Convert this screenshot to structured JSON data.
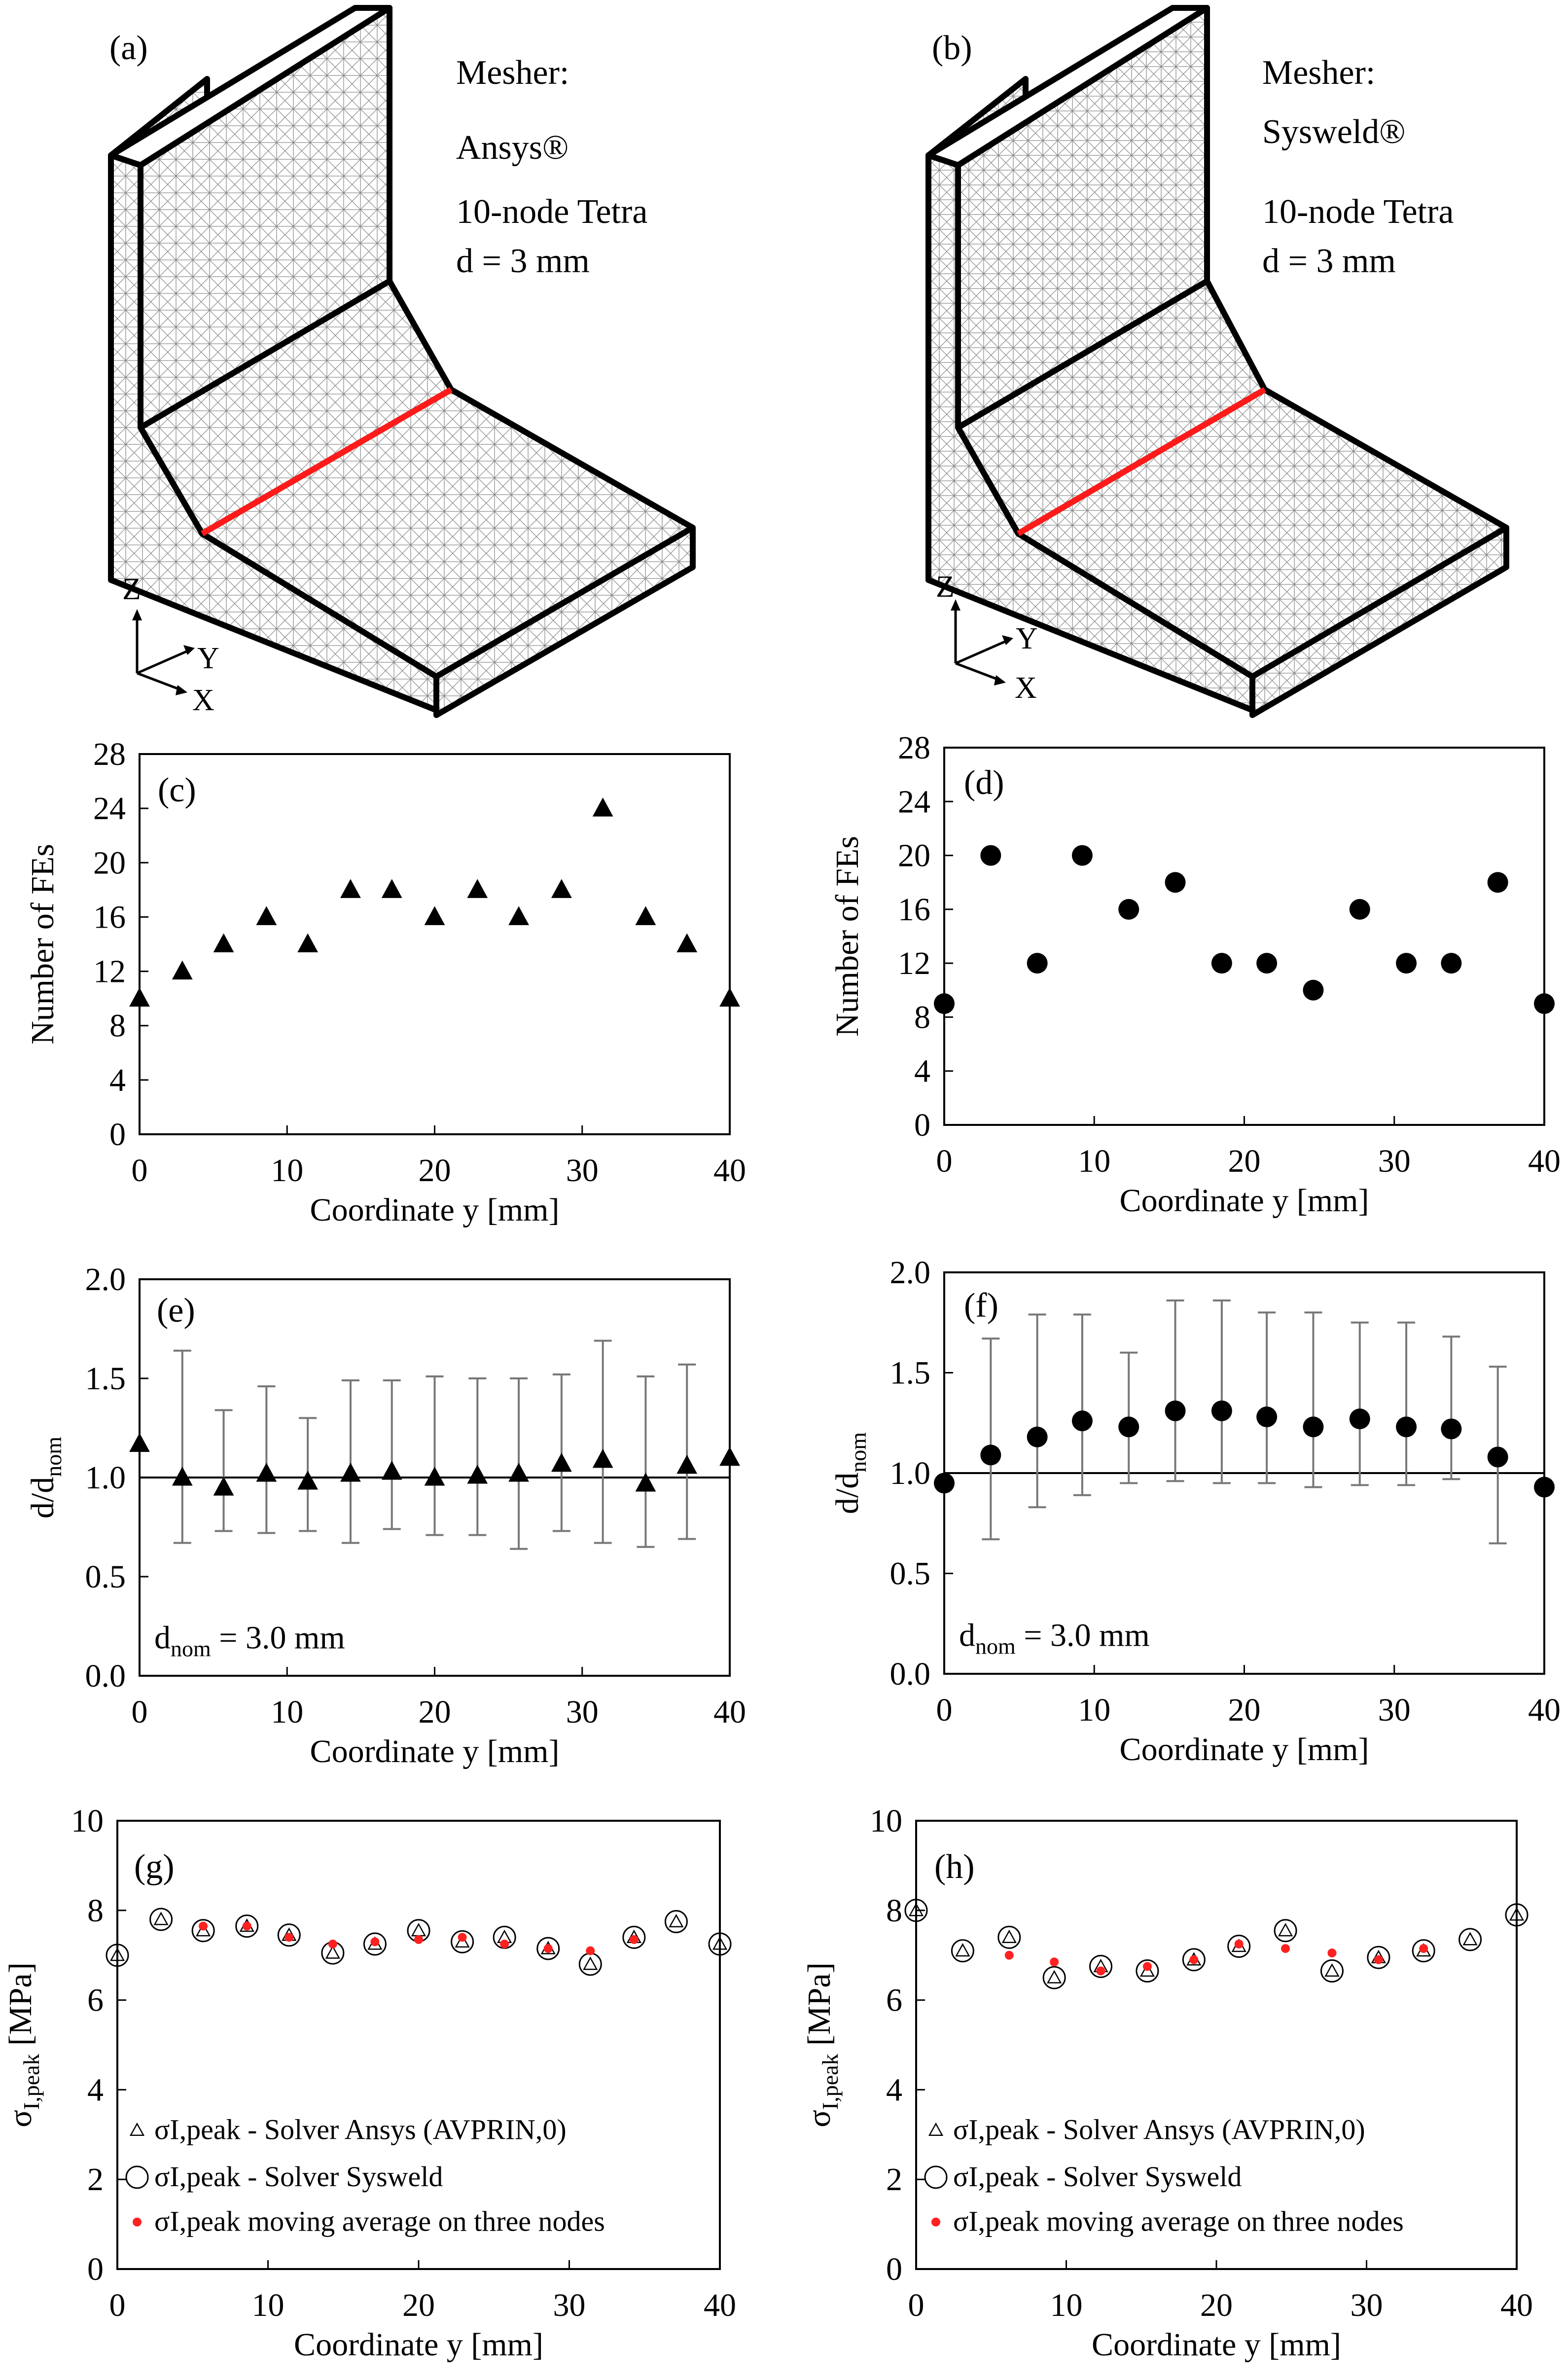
{
  "panels": {
    "a": {
      "label": "(a)",
      "mesher_title": "Mesher:",
      "mesher_name": "Ansys®",
      "element_type": "10-node Tetra",
      "element_size": "d = 3 mm",
      "axes": {
        "z": "Z",
        "y": "Y",
        "x": "X"
      }
    },
    "b": {
      "label": "(b)",
      "mesher_title": "Mesher:",
      "mesher_name": "Sysweld®",
      "element_type": "10-node Tetra",
      "element_size": "d = 3 mm",
      "axes": {
        "z": "Z",
        "y": "Y",
        "x": "X"
      }
    }
  },
  "colors": {
    "weld_line": "#ff1a1a",
    "mesh_line": "#8c8c8c",
    "markers": "#000000",
    "moving_average": "#ff2020",
    "error_bars": "#777777"
  },
  "chart_data": [
    {
      "id": "c",
      "panel_label": "(c)",
      "type": "scatter",
      "ylabel": "Number of FEs",
      "xlabel": "Coordinate y [mm]",
      "xlim": [
        0,
        40
      ],
      "ylim": [
        0,
        28
      ],
      "xticks": [
        0,
        10,
        20,
        30,
        40
      ],
      "yticks": [
        0,
        4,
        8,
        12,
        16,
        20,
        24,
        28
      ],
      "marker": "triangle",
      "x": [
        0,
        2.9,
        5.7,
        8.6,
        11.4,
        14.3,
        17.1,
        20,
        22.9,
        25.7,
        28.6,
        31.4,
        34.3,
        37.1,
        40
      ],
      "y": [
        10,
        12,
        14,
        16,
        14,
        18,
        18,
        16,
        18,
        16,
        18,
        24,
        16,
        14,
        10
      ]
    },
    {
      "id": "d",
      "panel_label": "(d)",
      "type": "scatter",
      "ylabel": "Number of FEs",
      "xlabel": "Coordinate y [mm]",
      "xlim": [
        0,
        40
      ],
      "ylim": [
        0,
        28
      ],
      "xticks": [
        0,
        10,
        20,
        30,
        40
      ],
      "yticks": [
        0,
        4,
        8,
        12,
        16,
        20,
        24,
        28
      ],
      "marker": "circle",
      "x": [
        0,
        3.1,
        6.2,
        9.2,
        12.3,
        15.4,
        18.5,
        21.5,
        24.6,
        27.7,
        30.8,
        33.8,
        36.9,
        40
      ],
      "y": [
        9,
        20,
        12,
        20,
        16,
        18,
        12,
        12,
        10,
        16,
        12,
        12,
        18,
        9
      ]
    },
    {
      "id": "e",
      "panel_label": "(e)",
      "type": "scatter",
      "ylabel": "d/d",
      "ylabel_sub": "nom",
      "xlabel": "Coordinate y [mm]",
      "xlim": [
        0,
        40
      ],
      "ylim": [
        0,
        2
      ],
      "xticks": [
        0,
        10,
        20,
        30,
        40
      ],
      "yticks": [
        0,
        0.5,
        1,
        1.5,
        2
      ],
      "ytick_labels": [
        "0.0",
        "0.5",
        "1.0",
        "1.5",
        "2.0"
      ],
      "marker": "triangle",
      "reference_line": 1.0,
      "annotation": {
        "main": "d",
        "sub": "nom",
        "rest": " = 3.0 mm"
      },
      "x": [
        0,
        2.9,
        5.7,
        8.6,
        11.4,
        14.3,
        17.1,
        20,
        22.9,
        25.7,
        28.6,
        31.4,
        34.3,
        37.1,
        40
      ],
      "y": [
        1.17,
        1.0,
        0.95,
        1.02,
        0.98,
        1.02,
        1.03,
        1.0,
        1.01,
        1.02,
        1.07,
        1.09,
        0.97,
        1.06,
        1.1
      ],
      "y_low": [
        null,
        0.67,
        0.73,
        0.72,
        0.73,
        0.67,
        0.74,
        0.71,
        0.71,
        0.64,
        0.73,
        0.67,
        0.65,
        0.69,
        null
      ],
      "y_high": [
        null,
        1.64,
        1.34,
        1.46,
        1.3,
        1.49,
        1.49,
        1.51,
        1.5,
        1.5,
        1.52,
        1.69,
        1.51,
        1.57,
        null
      ]
    },
    {
      "id": "f",
      "panel_label": "(f)",
      "type": "scatter",
      "ylabel": "d/d",
      "ylabel_sub": "nom",
      "xlabel": "Coordinate y [mm]",
      "xlim": [
        0,
        40
      ],
      "ylim": [
        0,
        2
      ],
      "xticks": [
        0,
        10,
        20,
        30,
        40
      ],
      "yticks": [
        0,
        0.5,
        1,
        1.5,
        2
      ],
      "ytick_labels": [
        "0.0",
        "0.5",
        "1.0",
        "1.5",
        "2.0"
      ],
      "marker": "circle",
      "reference_line": 1.0,
      "annotation": {
        "main": "d",
        "sub": "nom",
        "rest": " = 3.0 mm"
      },
      "x": [
        0,
        3.1,
        6.2,
        9.2,
        12.3,
        15.4,
        18.5,
        21.5,
        24.6,
        27.7,
        30.8,
        33.8,
        36.9,
        40
      ],
      "y": [
        0.95,
        1.09,
        1.18,
        1.26,
        1.23,
        1.31,
        1.31,
        1.28,
        1.23,
        1.27,
        1.23,
        1.22,
        1.08,
        0.93
      ],
      "y_low": [
        null,
        0.67,
        0.83,
        0.89,
        0.95,
        0.96,
        0.95,
        0.95,
        0.93,
        0.94,
        0.94,
        0.97,
        0.65,
        null
      ],
      "y_high": [
        null,
        1.67,
        1.79,
        1.79,
        1.6,
        1.86,
        1.86,
        1.8,
        1.8,
        1.75,
        1.75,
        1.68,
        1.53,
        null
      ]
    },
    {
      "id": "g",
      "panel_label": "(g)",
      "type": "scatter",
      "ylabel": "σ",
      "ylabel_sub": "I,peak",
      "ylabel_rest": " [MPa]",
      "xlabel": "Coordinate y [mm]",
      "xlim": [
        0,
        40
      ],
      "ylim": [
        0,
        10
      ],
      "xticks": [
        0,
        10,
        20,
        30,
        40
      ],
      "yticks": [
        0,
        2,
        4,
        6,
        8,
        10
      ],
      "legend": [
        "σI,peak - Solver Ansys (AVPRIN,0)",
        "σI,peak - Solver Sysweld",
        "σI,peak moving average on three nodes"
      ],
      "legend_position": "bottom-left",
      "series": [
        {
          "name": "σI,peak - Solver Ansys (AVPRIN,0)",
          "marker": "triangle",
          "x": [
            0,
            2.9,
            5.7,
            8.6,
            11.4,
            14.3,
            17.1,
            20,
            22.9,
            25.7,
            28.6,
            31.4,
            34.3,
            37.1,
            40
          ],
          "y": [
            7.0,
            7.8,
            7.55,
            7.65,
            7.45,
            7.05,
            7.25,
            7.55,
            7.3,
            7.4,
            7.15,
            6.8,
            7.4,
            7.75,
            7.25
          ]
        },
        {
          "name": "σI,peak - Solver Sysweld",
          "marker": "circle",
          "x": [
            0,
            2.9,
            5.7,
            8.6,
            11.4,
            14.3,
            17.1,
            20,
            22.9,
            25.7,
            28.6,
            31.4,
            34.3,
            37.1,
            40
          ],
          "y": [
            7.0,
            7.8,
            7.55,
            7.65,
            7.45,
            7.05,
            7.25,
            7.55,
            7.3,
            7.4,
            7.15,
            6.8,
            7.4,
            7.75,
            7.25
          ]
        },
        {
          "name": "σI,peak moving average on three nodes",
          "marker": "dot",
          "x": [
            5.7,
            8.6,
            11.4,
            14.3,
            17.1,
            20,
            22.9,
            25.7,
            28.6,
            31.4,
            34.3
          ],
          "y": [
            7.65,
            7.65,
            7.4,
            7.25,
            7.3,
            7.35,
            7.4,
            7.25,
            7.15,
            7.1,
            7.35
          ]
        }
      ]
    },
    {
      "id": "h",
      "panel_label": "(h)",
      "type": "scatter",
      "ylabel": "σ",
      "ylabel_sub": "I,peak",
      "ylabel_rest": " [MPa]",
      "xlabel": "Coordinate y [mm]",
      "xlim": [
        0,
        40
      ],
      "ylim": [
        0,
        10
      ],
      "xticks": [
        0,
        10,
        20,
        30,
        40
      ],
      "yticks": [
        0,
        2,
        4,
        6,
        8,
        10
      ],
      "legend": [
        "σI,peak - Solver Ansys (AVPRIN,0)",
        "σI,peak - Solver Sysweld",
        "σI,peak moving average on three nodes"
      ],
      "legend_position": "bottom-left",
      "series": [
        {
          "name": "σI,peak - Solver Ansys (AVPRIN,0)",
          "marker": "triangle",
          "x": [
            0,
            3.1,
            6.2,
            9.2,
            12.3,
            15.4,
            18.5,
            21.5,
            24.6,
            27.7,
            30.8,
            33.8,
            36.9,
            40
          ],
          "y": [
            8.0,
            7.1,
            7.4,
            6.5,
            6.75,
            6.65,
            6.9,
            7.2,
            7.55,
            6.65,
            6.95,
            7.1,
            7.35,
            7.9
          ]
        },
        {
          "name": "σI,peak - Solver Sysweld",
          "marker": "circle",
          "x": [
            0,
            3.1,
            6.2,
            9.2,
            12.3,
            15.4,
            18.5,
            21.5,
            24.6,
            27.7,
            30.8,
            33.8,
            36.9,
            40
          ],
          "y": [
            8.0,
            7.1,
            7.4,
            6.5,
            6.75,
            6.65,
            6.9,
            7.2,
            7.55,
            6.65,
            6.95,
            7.1,
            7.35,
            7.9
          ]
        },
        {
          "name": "σI,peak moving average on three nodes",
          "marker": "dot",
          "x": [
            6.2,
            9.2,
            12.3,
            15.4,
            18.5,
            21.5,
            24.6,
            27.7,
            30.8,
            33.8
          ],
          "y": [
            7.0,
            6.85,
            6.65,
            6.75,
            6.9,
            7.25,
            7.15,
            7.05,
            6.9,
            7.15
          ]
        }
      ]
    }
  ]
}
